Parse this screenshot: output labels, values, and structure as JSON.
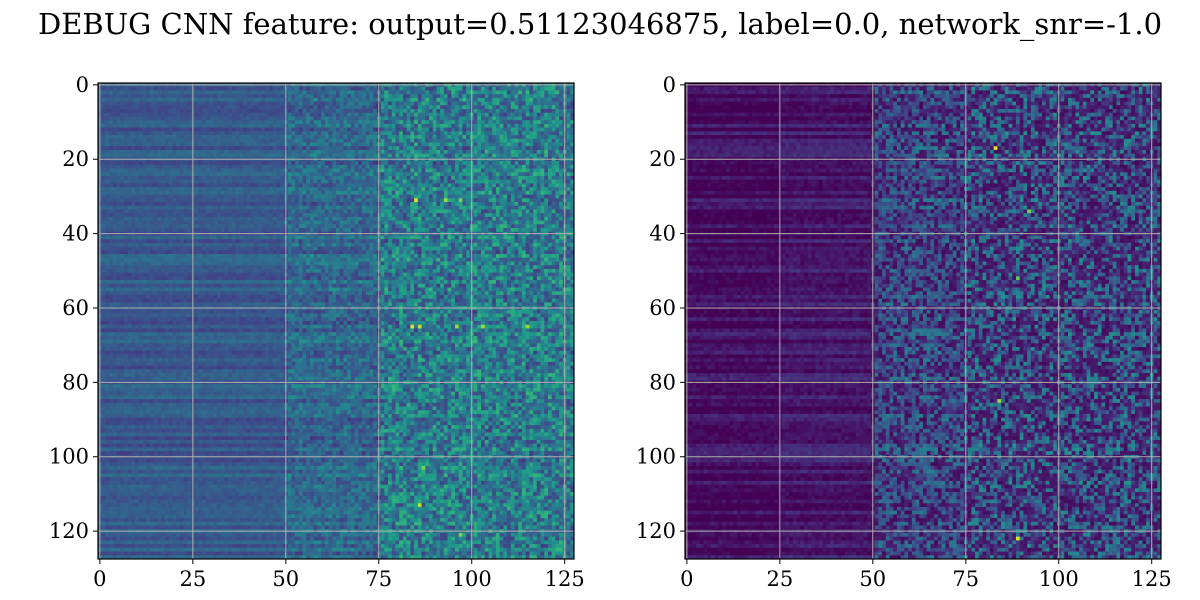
{
  "figure": {
    "title": "DEBUG CNN feature: output=0.51123046875, label=0.0, network_snr=-1.0"
  },
  "chart_data": [
    {
      "type": "heatmap",
      "colormap": "viridis",
      "rows": 128,
      "cols": 128,
      "grid": true,
      "xlim": [
        -0.5,
        127.5
      ],
      "ylim": [
        127.5,
        -0.5
      ],
      "x_ticks": [
        0,
        25,
        50,
        75,
        100,
        125
      ],
      "y_ticks": [
        0,
        20,
        40,
        60,
        80,
        100,
        120
      ],
      "x_tick_labels": [
        "0",
        "25",
        "50",
        "75",
        "100",
        "125"
      ],
      "y_tick_labels": [
        "0",
        "20",
        "40",
        "60",
        "80",
        "100",
        "120"
      ],
      "value_range": [
        0,
        1
      ],
      "column_mean_profile": [
        {
          "col_from": 0,
          "col_to": 50,
          "value": 0.28
        },
        {
          "col_from": 50,
          "col_to": 75,
          "value": 0.34
        },
        {
          "col_from": 75,
          "col_to": 127,
          "value": 0.42
        }
      ],
      "hot_spots": [
        {
          "row": 31,
          "col": 85,
          "value": 0.95
        },
        {
          "row": 31,
          "col": 93,
          "value": 0.85
        },
        {
          "row": 31,
          "col": 97,
          "value": 0.8
        },
        {
          "row": 65,
          "col": 84,
          "value": 0.95
        },
        {
          "row": 65,
          "col": 86,
          "value": 0.9
        },
        {
          "row": 65,
          "col": 96,
          "value": 0.85
        },
        {
          "row": 65,
          "col": 103,
          "value": 0.85
        },
        {
          "row": 65,
          "col": 115,
          "value": 0.85
        },
        {
          "row": 103,
          "col": 87,
          "value": 0.8
        },
        {
          "row": 113,
          "col": 86,
          "value": 0.9
        },
        {
          "row": 121,
          "col": 97,
          "value": 0.8
        }
      ]
    },
    {
      "type": "heatmap",
      "colormap": "viridis",
      "rows": 128,
      "cols": 128,
      "grid": true,
      "xlim": [
        -0.5,
        127.5
      ],
      "ylim": [
        127.5,
        -0.5
      ],
      "x_ticks": [
        0,
        25,
        50,
        75,
        100,
        125
      ],
      "y_ticks": [
        0,
        20,
        40,
        60,
        80,
        100,
        120
      ],
      "x_tick_labels": [
        "0",
        "25",
        "50",
        "75",
        "100",
        "125"
      ],
      "y_tick_labels": [
        "0",
        "20",
        "40",
        "60",
        "80",
        "100",
        "120"
      ],
      "value_range": [
        0,
        1
      ],
      "column_mean_profile": [
        {
          "col_from": 0,
          "col_to": 25,
          "value": 0.04
        },
        {
          "col_from": 25,
          "col_to": 50,
          "value": 0.07
        },
        {
          "col_from": 50,
          "col_to": 127,
          "value": 0.28
        }
      ],
      "hot_spots": [
        {
          "row": 17,
          "col": 83,
          "value": 0.95
        },
        {
          "row": 34,
          "col": 92,
          "value": 0.8
        },
        {
          "row": 52,
          "col": 89,
          "value": 0.75
        },
        {
          "row": 85,
          "col": 84,
          "value": 0.85
        },
        {
          "row": 122,
          "col": 89,
          "value": 0.95
        }
      ]
    }
  ]
}
